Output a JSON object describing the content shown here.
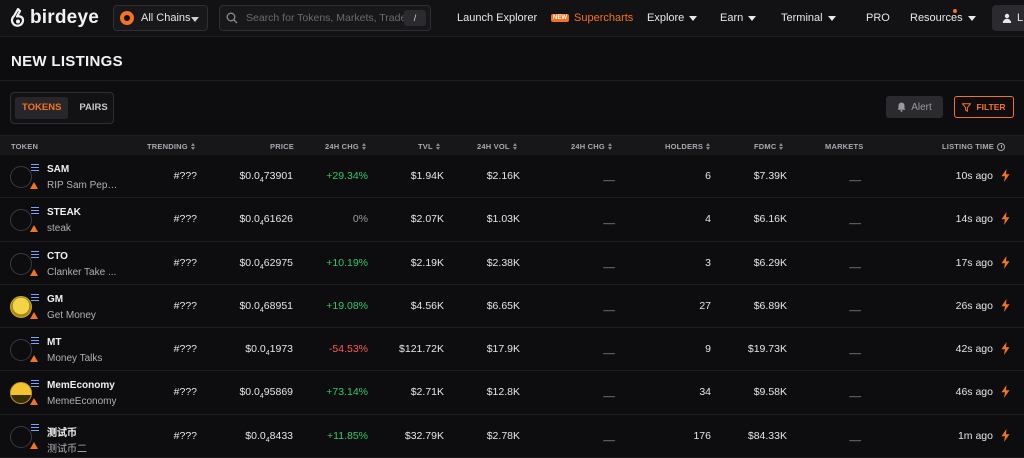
{
  "nav": {
    "logo_text": "birdeye",
    "chain_label": "All Chains",
    "search_placeholder": "Search for Tokens, Markets, Traders...",
    "search_shortcut": "/",
    "links": {
      "launch_explorer": "Launch Explorer",
      "new_badge": "NEW",
      "supercharts": "Supercharts",
      "explore": "Explore",
      "earn": "Earn",
      "terminal": "Terminal",
      "pro": "PRO",
      "resources": "Resources"
    },
    "login_label": "L"
  },
  "page_title": "NEW LISTINGS",
  "tabs": [
    {
      "label": "TOKENS",
      "active": true
    },
    {
      "label": "PAIRS",
      "active": false
    }
  ],
  "actions": {
    "alert_label": "Alert",
    "filter_label": "FILTER"
  },
  "table": {
    "columns": {
      "token": "TOKEN",
      "trending": "TRENDING",
      "price": "PRICE",
      "chg24": "24H CHG",
      "tvl": "TVL",
      "vol24": "24H VOL",
      "volchg24": "24H CHG",
      "holders": "HOLDERS",
      "fdmc": "FDMC",
      "markets": "MARKETS",
      "listing_time": "LISTING TIME"
    },
    "rows": [
      {
        "symbol": "SAM",
        "name": "RIP Sam Pepp...",
        "trending": "#???",
        "price_prefix": "$0.0",
        "price_zeros": "4",
        "price_digits": "73901",
        "change": "+29.34%",
        "change_dir": "pos",
        "tvl": "$1.94K",
        "vol": "$2.16K",
        "volchg": "__",
        "holders": "6",
        "fdmc": "$7.39K",
        "markets": "__",
        "time": "10s ago",
        "avatar": "empty"
      },
      {
        "symbol": "STEAK",
        "name": "steak",
        "trending": "#???",
        "price_prefix": "$0.0",
        "price_zeros": "4",
        "price_digits": "61626",
        "change": "0%",
        "change_dir": "neu",
        "tvl": "$2.07K",
        "vol": "$1.03K",
        "volchg": "__",
        "holders": "4",
        "fdmc": "$6.16K",
        "markets": "__",
        "time": "14s ago",
        "avatar": "empty"
      },
      {
        "symbol": "CTO",
        "name": "Clanker Take ...",
        "trending": "#???",
        "price_prefix": "$0.0",
        "price_zeros": "4",
        "price_digits": "62975",
        "change": "+10.19%",
        "change_dir": "pos",
        "tvl": "$2.19K",
        "vol": "$2.38K",
        "volchg": "__",
        "holders": "3",
        "fdmc": "$6.29K",
        "markets": "__",
        "time": "17s ago",
        "avatar": "empty"
      },
      {
        "symbol": "GM",
        "name": "Get Money",
        "trending": "#???",
        "price_prefix": "$0.0",
        "price_zeros": "4",
        "price_digits": "68951",
        "change": "+19.08%",
        "change_dir": "pos",
        "tvl": "$4.56K",
        "vol": "$6.65K",
        "volchg": "__",
        "holders": "27",
        "fdmc": "$6.89K",
        "markets": "__",
        "time": "26s ago",
        "avatar": "gm"
      },
      {
        "symbol": "MT",
        "name": "Money Talks",
        "trending": "#???",
        "price_prefix": "$0.0",
        "price_zeros": "4",
        "price_digits": "1973",
        "change": "-54.53%",
        "change_dir": "neg",
        "tvl": "$121.72K",
        "vol": "$17.9K",
        "volchg": "__",
        "holders": "9",
        "fdmc": "$19.73K",
        "markets": "__",
        "time": "42s ago",
        "avatar": "empty"
      },
      {
        "symbol": "MemEconomy",
        "name": "MemeEconomy",
        "trending": "#???",
        "price_prefix": "$0.0",
        "price_zeros": "4",
        "price_digits": "95869",
        "change": "+73.14%",
        "change_dir": "pos",
        "tvl": "$2.71K",
        "vol": "$12.8K",
        "volchg": "__",
        "holders": "34",
        "fdmc": "$9.58K",
        "markets": "__",
        "time": "46s ago",
        "avatar": "meme"
      },
      {
        "symbol": "测试币",
        "name": "测试币二",
        "trending": "#???",
        "price_prefix": "$0.0",
        "price_zeros": "4",
        "price_digits": "8433",
        "change": "+11.85%",
        "change_dir": "pos",
        "tvl": "$32.79K",
        "vol": "$2.78K",
        "volchg": "__",
        "holders": "176",
        "fdmc": "$84.33K",
        "markets": "__",
        "time": "1m ago",
        "avatar": "empty"
      }
    ]
  },
  "colors": {
    "accent": "#f5731f",
    "positive": "#2fc86a",
    "negative": "#ff5a55",
    "background": "#0d0d0f"
  }
}
